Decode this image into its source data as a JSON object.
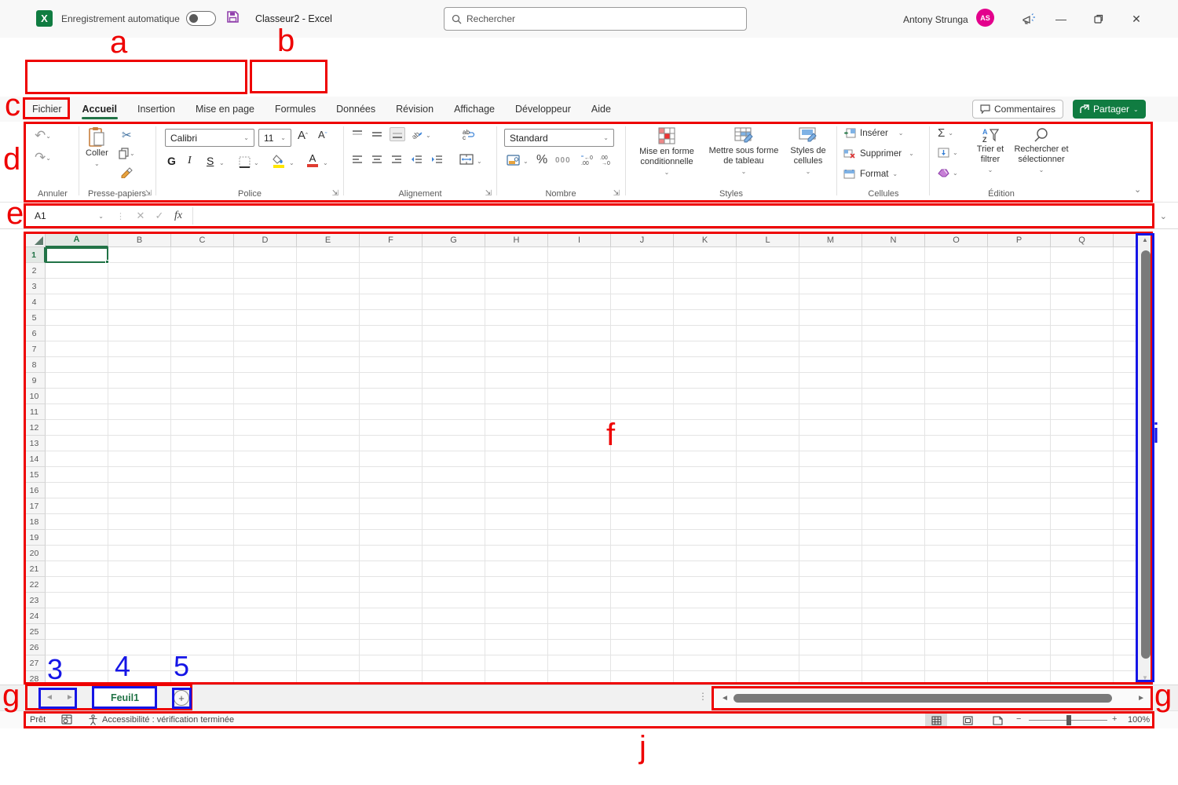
{
  "colors": {
    "annotation_red": "#ee0000",
    "annotation_blue": "#1515e6",
    "excel_green": "#107c41",
    "excel_dark_green": "#217346",
    "avatar_pink": "#e3008c",
    "save_purple": "#9141ac"
  },
  "titlebar": {
    "autosave_label": "Enregistrement automatique",
    "doc_title": "Classeur2  -  Excel",
    "search_placeholder": "Rechercher",
    "user_name": "Antony Strunga",
    "user_initials": "AS"
  },
  "menubar": {
    "tabs": [
      "Fichier",
      "Accueil",
      "Insertion",
      "Mise en page",
      "Formules",
      "Données",
      "Révision",
      "Affichage",
      "Développeur",
      "Aide"
    ],
    "active_tab": "Accueil",
    "comments_label": "Commentaires",
    "share_label": "Partager"
  },
  "ribbon": {
    "annuler": {
      "label": "Annuler"
    },
    "presse_papiers": {
      "label": "Presse-papiers",
      "coller": "Coller"
    },
    "police": {
      "label": "Police",
      "font_name": "Calibri",
      "font_size": "11",
      "bold": "G",
      "italic": "I",
      "underline": "S"
    },
    "alignement": {
      "label": "Alignement"
    },
    "nombre": {
      "label": "Nombre",
      "format": "Standard",
      "percent": "%",
      "thousands": "000"
    },
    "styles": {
      "label": "Styles",
      "conditional": "Mise en forme conditionnelle",
      "format_table": "Mettre sous forme de tableau",
      "cell_styles": "Styles de cellules"
    },
    "cellules": {
      "label": "Cellules",
      "inserer": "Insérer",
      "supprimer": "Supprimer",
      "format": "Format"
    },
    "edition": {
      "label": "Édition",
      "sum": "Σ",
      "sort": "Trier et filtrer",
      "find": "Rechercher et sélectionner"
    }
  },
  "formula_bar": {
    "name_box": "A1",
    "fx": "fx"
  },
  "grid": {
    "columns": [
      "A",
      "B",
      "C",
      "D",
      "E",
      "F",
      "G",
      "H",
      "I",
      "J",
      "K",
      "L",
      "M",
      "N",
      "O",
      "P",
      "Q"
    ],
    "row_count": 28,
    "selected_cell": "A1",
    "selected_column": "A",
    "selected_row": 1
  },
  "sheet_bar": {
    "tab": "Feuil1"
  },
  "status_bar": {
    "ready": "Prêt",
    "accessibility": "Accessibilité : vérification terminée",
    "zoom": "100%"
  },
  "annotations": {
    "a": "a",
    "b": "b",
    "c": "c",
    "d": "d",
    "e": "e",
    "f": "f",
    "g_left": "g",
    "g_right": "g",
    "i": "i",
    "j": "j",
    "n3": "3",
    "n4": "4",
    "n5": "5"
  }
}
